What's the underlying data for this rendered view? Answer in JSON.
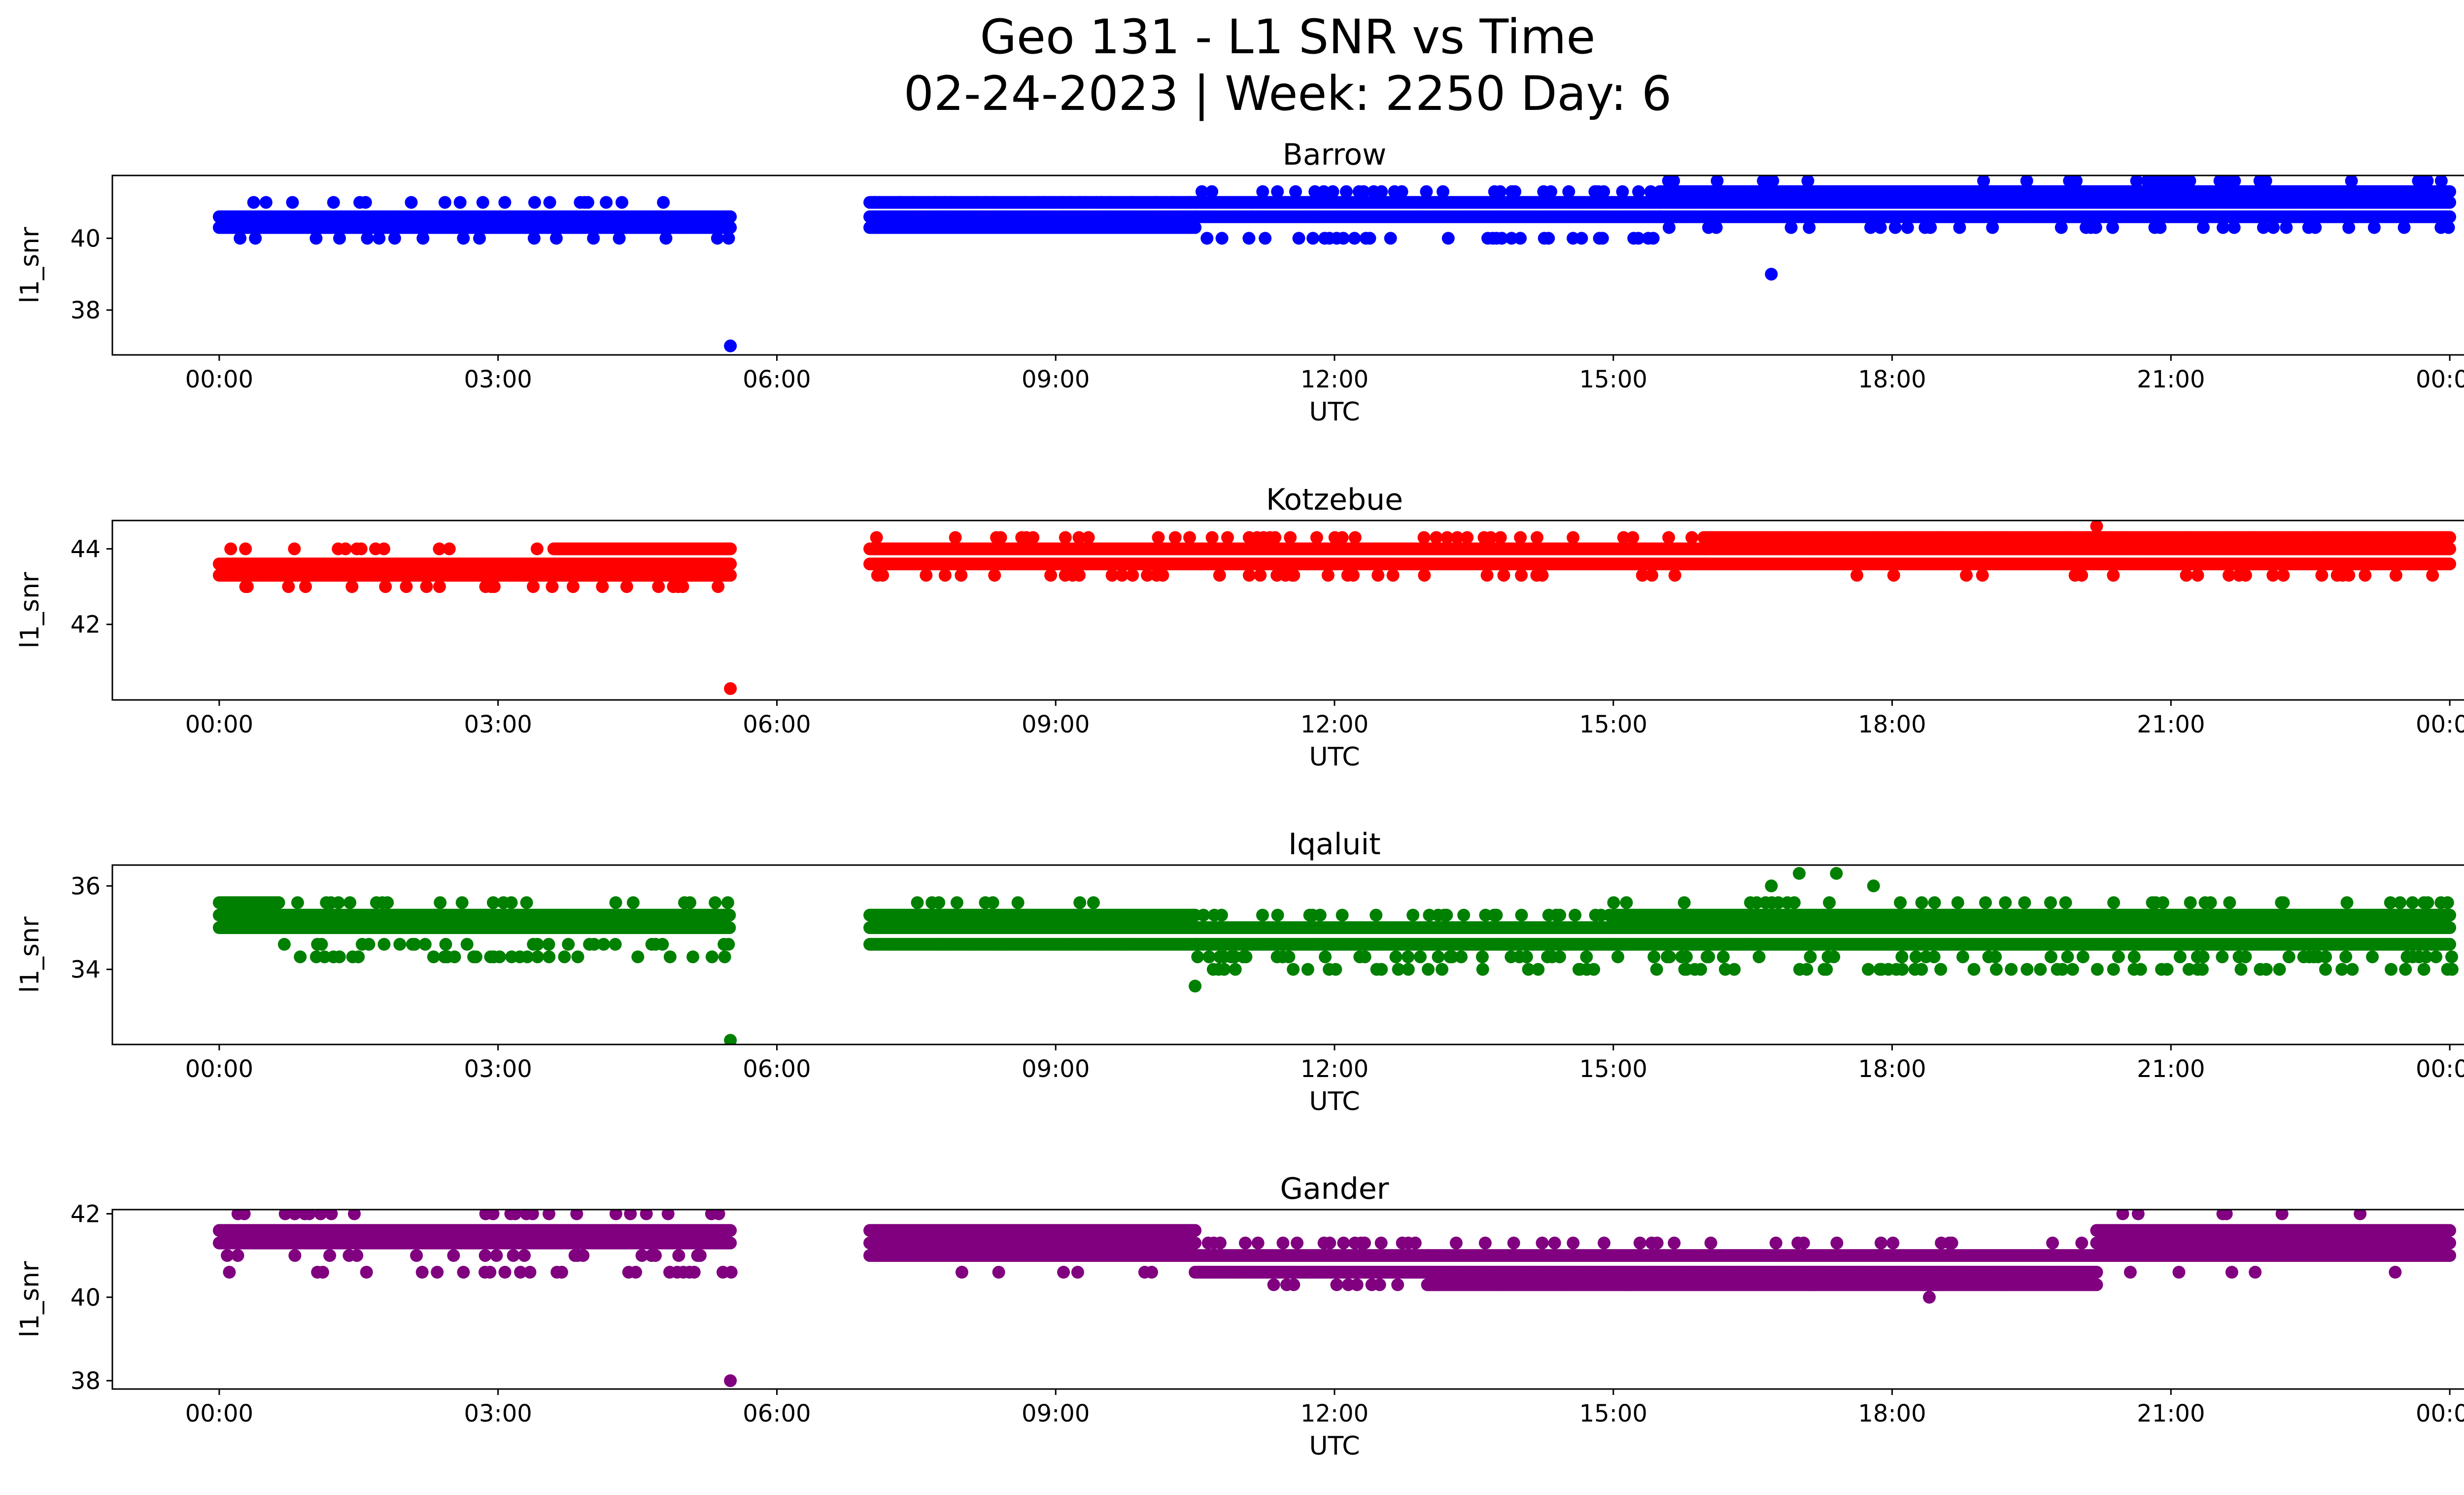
{
  "figure": {
    "title_line1": "Geo 131 - L1 SNR vs Time",
    "title_line2": "02-24-2023 | Week: 2250 Day: 6"
  },
  "chart_data": [
    {
      "type": "scatter",
      "title": "Barrow",
      "xlabel": "UTC",
      "ylabel": "l1_snr",
      "color": "#0000ff",
      "x_ticks": [
        "00:00",
        "03:00",
        "06:00",
        "09:00",
        "12:00",
        "15:00",
        "18:00",
        "21:00",
        "00:00"
      ],
      "xlim_hours": [
        -1.15,
        25.15
      ],
      "y_ticks": [
        38,
        40
      ],
      "ylim": [
        36.75,
        41.75
      ],
      "segments": [
        {
          "x_start_hours": 0.0,
          "x_end_hours": 5.5,
          "levels": [
            40.3,
            40.6
          ],
          "sparse_levels": [
            40.0,
            41.0
          ],
          "sparse_density": 0.25
        },
        {
          "x_start_hours": 7.0,
          "x_end_hours": 10.5,
          "levels": [
            40.3,
            40.6,
            41.0
          ],
          "sparse_levels": [
            41.0
          ],
          "sparse_density": 0.5
        },
        {
          "x_start_hours": 10.5,
          "x_end_hours": 15.5,
          "levels": [
            40.6,
            41.0
          ],
          "sparse_levels": [
            40.0,
            41.3
          ],
          "sparse_density": 0.35
        },
        {
          "x_start_hours": 15.5,
          "x_end_hours": 24.0,
          "levels": [
            40.6,
            41.0,
            41.3
          ],
          "sparse_levels": [
            40.3,
            41.6
          ],
          "sparse_density": 0.2
        }
      ],
      "outliers": [
        {
          "x_hours": 5.5,
          "y": 37.0
        },
        {
          "x_hours": 16.7,
          "y": 39.0
        }
      ]
    },
    {
      "type": "scatter",
      "title": "Kotzebue",
      "xlabel": "UTC",
      "ylabel": "l1_snr",
      "color": "#ff0000",
      "x_ticks": [
        "00:00",
        "03:00",
        "06:00",
        "09:00",
        "12:00",
        "15:00",
        "18:00",
        "21:00",
        "00:00"
      ],
      "xlim_hours": [
        -1.15,
        25.15
      ],
      "y_ticks": [
        42,
        44
      ],
      "ylim": [
        40.0,
        44.75
      ],
      "segments": [
        {
          "x_start_hours": 0.0,
          "x_end_hours": 3.6,
          "levels": [
            43.3,
            43.6
          ],
          "sparse_levels": [
            43.0,
            44.0
          ],
          "sparse_density": 0.25
        },
        {
          "x_start_hours": 3.6,
          "x_end_hours": 5.5,
          "levels": [
            43.3,
            43.6,
            44.0
          ],
          "sparse_levels": [
            43.0
          ],
          "sparse_density": 0.2
        },
        {
          "x_start_hours": 7.0,
          "x_end_hours": 16.0,
          "levels": [
            43.6,
            44.0
          ],
          "sparse_levels": [
            43.3,
            44.3
          ],
          "sparse_density": 0.25
        },
        {
          "x_start_hours": 16.0,
          "x_end_hours": 24.0,
          "levels": [
            43.6,
            44.0,
            44.3
          ],
          "sparse_levels": [
            43.3
          ],
          "sparse_density": 0.15
        }
      ],
      "outliers": [
        {
          "x_hours": 5.5,
          "y": 40.3
        },
        {
          "x_hours": 20.2,
          "y": 44.6
        }
      ]
    },
    {
      "type": "scatter",
      "title": "Iqaluit",
      "xlabel": "UTC",
      "ylabel": "l1_snr",
      "color": "#008000",
      "x_ticks": [
        "00:00",
        "03:00",
        "06:00",
        "09:00",
        "12:00",
        "15:00",
        "18:00",
        "21:00",
        "00:00"
      ],
      "xlim_hours": [
        -1.15,
        25.15
      ],
      "y_ticks": [
        34,
        36
      ],
      "ylim": [
        32.2,
        36.5
      ],
      "segments": [
        {
          "x_start_hours": 0.0,
          "x_end_hours": 0.65,
          "levels": [
            35.0,
            35.3,
            35.6
          ],
          "sparse_levels": [],
          "sparse_density": 0
        },
        {
          "x_start_hours": 0.65,
          "x_end_hours": 5.5,
          "levels": [
            35.0,
            35.3
          ],
          "sparse_levels": [
            34.6,
            35.6,
            34.3
          ],
          "sparse_density": 0.3
        },
        {
          "x_start_hours": 7.0,
          "x_end_hours": 10.5,
          "levels": [
            34.6,
            35.0,
            35.3
          ],
          "sparse_levels": [
            35.6
          ],
          "sparse_density": 0.15
        },
        {
          "x_start_hours": 10.5,
          "x_end_hours": 15.0,
          "levels": [
            34.6,
            35.0
          ],
          "sparse_levels": [
            34.3,
            34.0,
            35.3
          ],
          "sparse_density": 0.35
        },
        {
          "x_start_hours": 15.0,
          "x_end_hours": 24.0,
          "levels": [
            34.6,
            35.0,
            35.3
          ],
          "sparse_levels": [
            34.3,
            35.6,
            34.0
          ],
          "sparse_density": 0.3
        }
      ],
      "outliers": [
        {
          "x_hours": 5.5,
          "y": 32.3
        },
        {
          "x_hours": 10.5,
          "y": 33.6
        },
        {
          "x_hours": 17.0,
          "y": 36.3
        },
        {
          "x_hours": 17.4,
          "y": 36.3
        },
        {
          "x_hours": 16.7,
          "y": 36.0
        },
        {
          "x_hours": 17.8,
          "y": 36.0
        }
      ]
    },
    {
      "type": "scatter",
      "title": "Gander",
      "xlabel": "UTC",
      "ylabel": "l1_snr",
      "color": "#800080",
      "x_ticks": [
        "00:00",
        "03:00",
        "06:00",
        "09:00",
        "12:00",
        "15:00",
        "18:00",
        "21:00",
        "00:00"
      ],
      "xlim_hours": [
        -1.15,
        25.15
      ],
      "y_ticks": [
        38,
        40,
        42
      ],
      "ylim": [
        37.8,
        42.1
      ],
      "segments": [
        {
          "x_start_hours": 0.0,
          "x_end_hours": 5.5,
          "levels": [
            41.3,
            41.6
          ],
          "sparse_levels": [
            41.0,
            42.0,
            40.6
          ],
          "sparse_density": 0.2
        },
        {
          "x_start_hours": 7.0,
          "x_end_hours": 10.5,
          "levels": [
            41.0,
            41.3,
            41.6
          ],
          "sparse_levels": [
            40.6
          ],
          "sparse_density": 0.15
        },
        {
          "x_start_hours": 10.5,
          "x_end_hours": 13.0,
          "levels": [
            40.6,
            41.0
          ],
          "sparse_levels": [
            41.3,
            40.3
          ],
          "sparse_density": 0.3
        },
        {
          "x_start_hours": 13.0,
          "x_end_hours": 20.2,
          "levels": [
            40.3,
            40.6,
            41.0
          ],
          "sparse_levels": [
            41.3
          ],
          "sparse_density": 0.2
        },
        {
          "x_start_hours": 20.2,
          "x_end_hours": 24.0,
          "levels": [
            41.0,
            41.3,
            41.6
          ],
          "sparse_levels": [
            42.0,
            40.6
          ],
          "sparse_density": 0.1
        }
      ],
      "outliers": [
        {
          "x_hours": 5.5,
          "y": 38.0
        },
        {
          "x_hours": 18.4,
          "y": 40.0
        }
      ]
    }
  ]
}
